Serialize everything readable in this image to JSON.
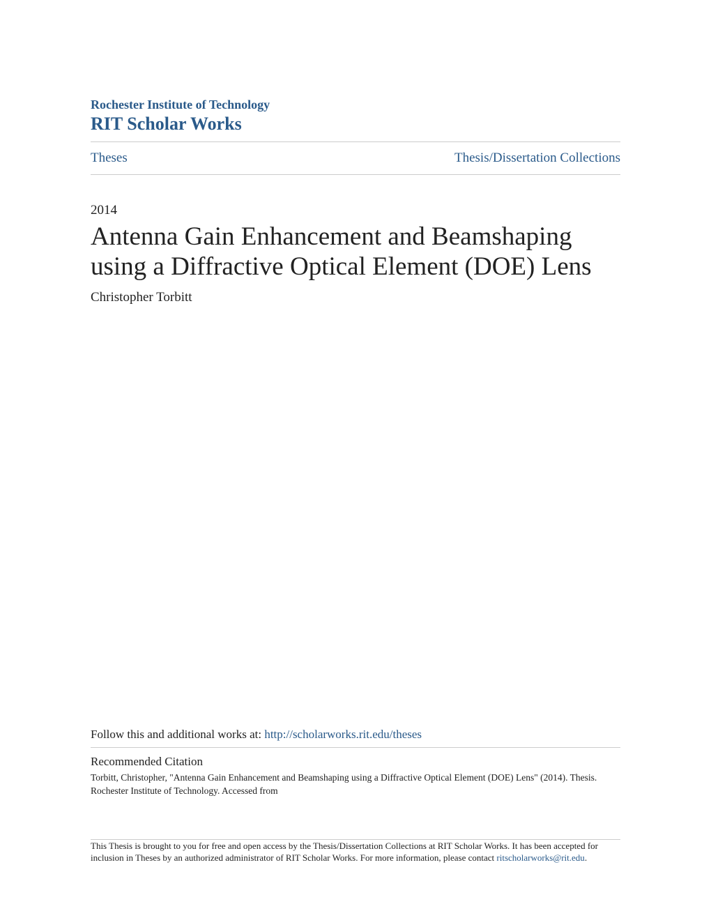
{
  "header": {
    "institution": "Rochester Institute of Technology",
    "repository": "RIT Scholar Works"
  },
  "nav": {
    "left": "Theses",
    "right": "Thesis/Dissertation Collections"
  },
  "document": {
    "year": "2014",
    "title": "Antenna Gain Enhancement and Beamshaping using a Diffractive Optical Element (DOE) Lens",
    "author": "Christopher Torbitt"
  },
  "follow": {
    "prefix": "Follow this and additional works at: ",
    "url": "http://scholarworks.rit.edu/theses"
  },
  "citation": {
    "heading": "Recommended Citation",
    "text": "Torbitt, Christopher, \"Antenna Gain Enhancement and Beamshaping using a Diffractive Optical Element (DOE) Lens\" (2014). Thesis. Rochester Institute of Technology. Accessed from"
  },
  "footer": {
    "text_before": "This Thesis is brought to you for free and open access by the Thesis/Dissertation Collections at RIT Scholar Works. It has been accepted for inclusion in Theses by an authorized administrator of RIT Scholar Works. For more information, please contact ",
    "email": "ritscholarworks@rit.edu",
    "text_after": "."
  },
  "colors": {
    "link": "#2a5a8a",
    "text": "#222222",
    "divider": "#cccccc",
    "background": "#ffffff"
  }
}
